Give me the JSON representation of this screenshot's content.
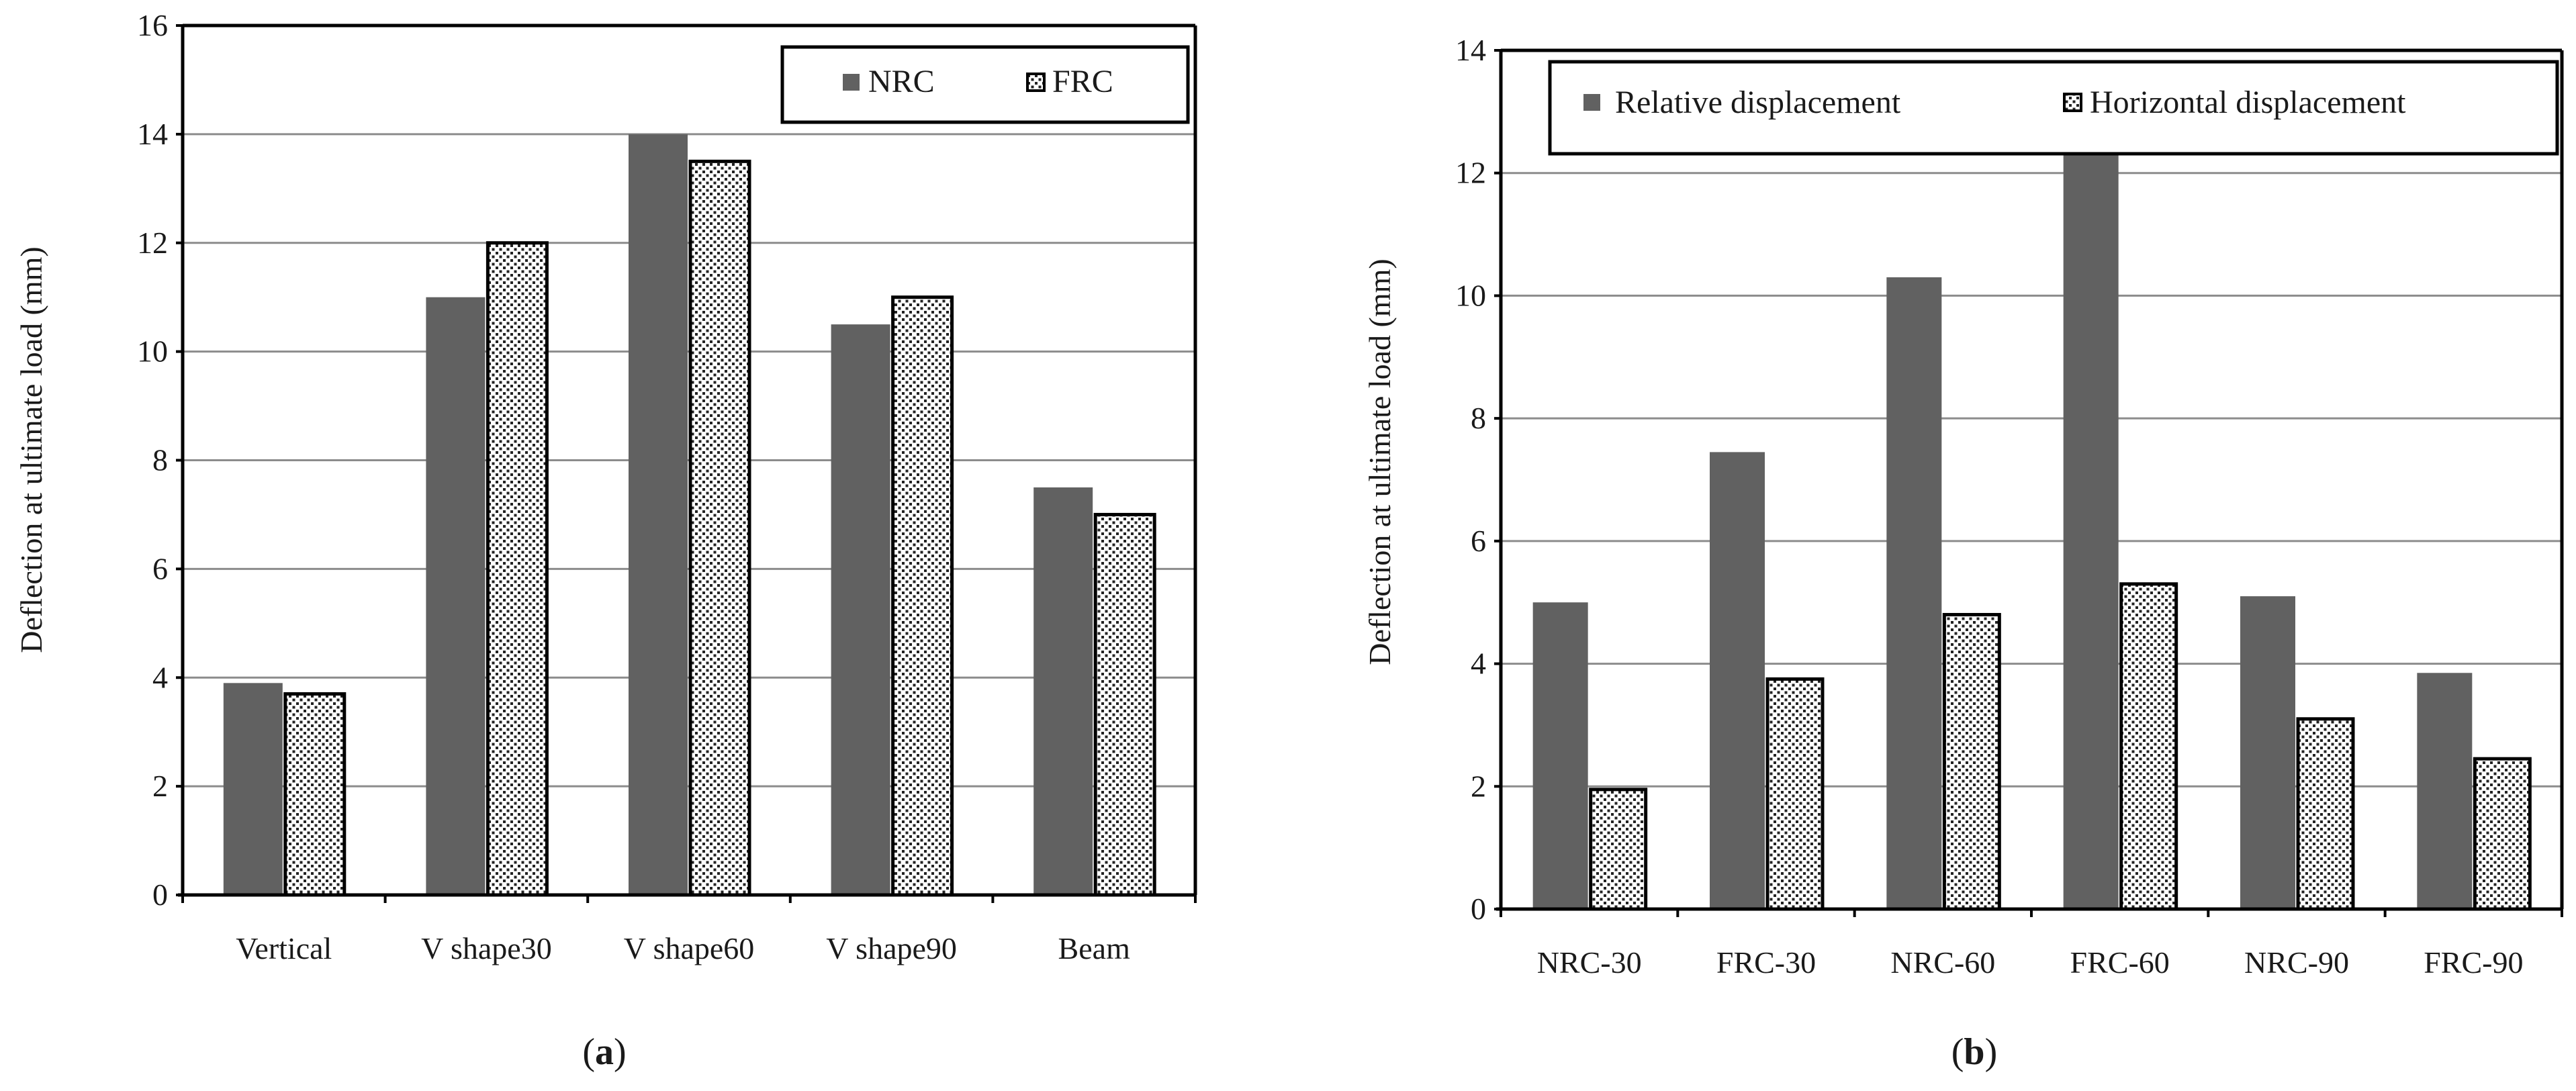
{
  "colors": {
    "solid_fill": "#616161",
    "dotted_fill": "#ffffff",
    "dot_color": "#222222",
    "grid": "#8c8c8c",
    "axis": "#000000"
  },
  "chart_data": [
    {
      "type": "bar",
      "panel_label": "a",
      "title": "",
      "xlabel": "",
      "ylabel": "Deflection at ultimate load  (mm)",
      "ylim": [
        0,
        16
      ],
      "yticks": [
        0,
        2,
        4,
        6,
        8,
        10,
        12,
        14,
        16
      ],
      "grid": true,
      "legend_position": "top-right",
      "categories": [
        "Vertical",
        "V shape30",
        "V shape60",
        "V shape90",
        "Beam"
      ],
      "series": [
        {
          "name": "NRC",
          "pattern": "solid",
          "values": [
            3.9,
            11.0,
            14.0,
            10.5,
            7.5
          ]
        },
        {
          "name": "FRC",
          "pattern": "dotted",
          "values": [
            3.7,
            12.0,
            13.5,
            11.0,
            7.0
          ]
        }
      ]
    },
    {
      "type": "bar",
      "panel_label": "b",
      "title": "",
      "xlabel": "",
      "ylabel": "Deflection at ultimate load  (mm)",
      "ylim": [
        0,
        14
      ],
      "yticks": [
        0,
        2,
        4,
        6,
        8,
        10,
        12,
        14
      ],
      "grid": true,
      "legend_position": "top",
      "categories": [
        "NRC-30",
        "FRC-30",
        "NRC-60",
        "FRC-60",
        "NRC-90",
        "FRC-90"
      ],
      "series": [
        {
          "name": "Relative displacement",
          "pattern": "solid",
          "values": [
            5.0,
            7.45,
            10.3,
            12.3,
            5.1,
            3.85
          ]
        },
        {
          "name": "Horizontal displacement",
          "pattern": "dotted",
          "values": [
            1.95,
            3.75,
            4.8,
            5.3,
            3.1,
            2.45
          ]
        }
      ]
    }
  ]
}
